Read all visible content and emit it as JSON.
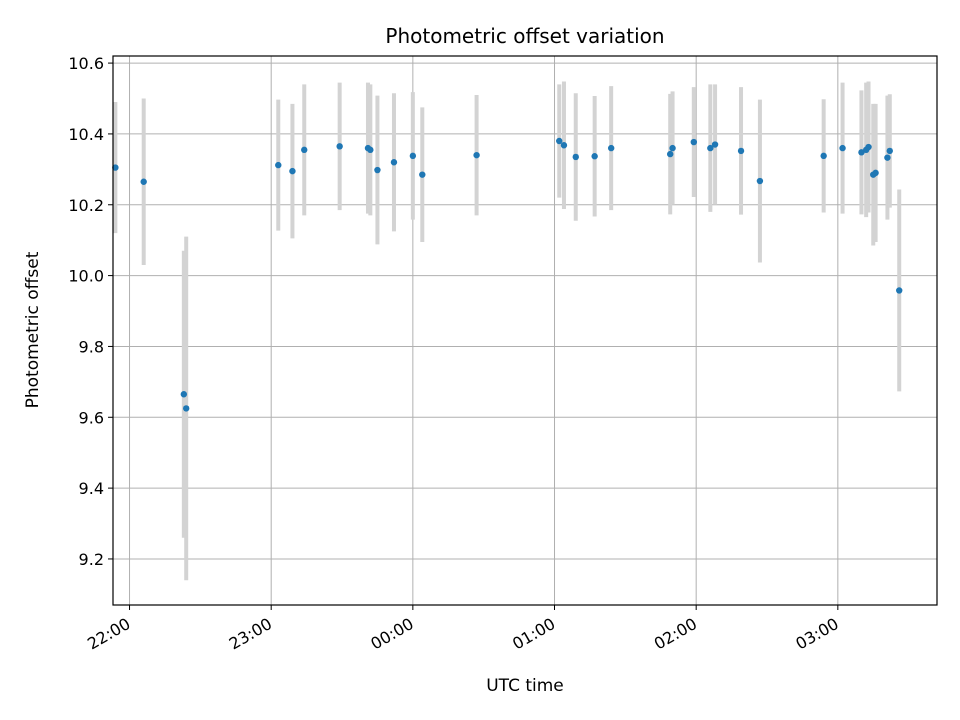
{
  "chart_data": {
    "type": "scatter",
    "title": "Photometric offset variation",
    "xlabel": "UTC time",
    "ylabel": "Photometric offset",
    "x_unit": "UTC time (hh:mm)",
    "xlim": [
      "21:53",
      "03:42"
    ],
    "ylim": [
      9.07,
      10.62
    ],
    "x_ticks": [
      "22:00",
      "23:00",
      "00:00",
      "01:00",
      "02:00",
      "03:00"
    ],
    "y_ticks": [
      9.2,
      9.4,
      9.6,
      9.8,
      10.0,
      10.2,
      10.4,
      10.6
    ],
    "grid": true,
    "colors": {
      "points": "#1f77b4",
      "errorbars": "#d3d3d3",
      "grid": "#b0b0b0"
    },
    "series": [
      {
        "points": [
          {
            "x": "21:54",
            "y": 10.305,
            "err": 0.185
          },
          {
            "x": "22:06",
            "y": 10.265,
            "err": 0.235
          },
          {
            "x": "22:23",
            "y": 9.665,
            "err": 0.405
          },
          {
            "x": "22:24",
            "y": 9.625,
            "err": 0.485
          },
          {
            "x": "23:03",
            "y": 10.312,
            "err": 0.185
          },
          {
            "x": "23:09",
            "y": 10.295,
            "err": 0.19
          },
          {
            "x": "23:14",
            "y": 10.355,
            "err": 0.185
          },
          {
            "x": "23:29",
            "y": 10.365,
            "err": 0.18
          },
          {
            "x": "23:41",
            "y": 10.36,
            "err": 0.185
          },
          {
            "x": "23:42",
            "y": 10.355,
            "err": 0.185
          },
          {
            "x": "23:45",
            "y": 10.298,
            "err": 0.21
          },
          {
            "x": "23:52",
            "y": 10.32,
            "err": 0.195
          },
          {
            "x": "00:00",
            "y": 10.338,
            "err": 0.18
          },
          {
            "x": "00:04",
            "y": 10.285,
            "err": 0.19
          },
          {
            "x": "00:27",
            "y": 10.34,
            "err": 0.17
          },
          {
            "x": "01:02",
            "y": 10.38,
            "err": 0.16
          },
          {
            "x": "01:04",
            "y": 10.368,
            "err": 0.18
          },
          {
            "x": "01:09",
            "y": 10.335,
            "err": 0.18
          },
          {
            "x": "01:17",
            "y": 10.337,
            "err": 0.17
          },
          {
            "x": "01:24",
            "y": 10.36,
            "err": 0.175
          },
          {
            "x": "01:49",
            "y": 10.343,
            "err": 0.17
          },
          {
            "x": "01:50",
            "y": 10.36,
            "err": 0.16
          },
          {
            "x": "01:59",
            "y": 10.377,
            "err": 0.155
          },
          {
            "x": "02:06",
            "y": 10.36,
            "err": 0.18
          },
          {
            "x": "02:08",
            "y": 10.37,
            "err": 0.17
          },
          {
            "x": "02:19",
            "y": 10.352,
            "err": 0.18
          },
          {
            "x": "02:27",
            "y": 10.267,
            "err": 0.23
          },
          {
            "x": "02:54",
            "y": 10.338,
            "err": 0.16
          },
          {
            "x": "03:02",
            "y": 10.36,
            "err": 0.185
          },
          {
            "x": "03:10",
            "y": 10.348,
            "err": 0.175
          },
          {
            "x": "03:12",
            "y": 10.355,
            "err": 0.19
          },
          {
            "x": "03:13",
            "y": 10.363,
            "err": 0.185
          },
          {
            "x": "03:15",
            "y": 10.285,
            "err": 0.2
          },
          {
            "x": "03:16",
            "y": 10.29,
            "err": 0.195
          },
          {
            "x": "03:21",
            "y": 10.333,
            "err": 0.175
          },
          {
            "x": "03:22",
            "y": 10.352,
            "err": 0.16
          },
          {
            "x": "03:26",
            "y": 9.958,
            "err": 0.285
          }
        ]
      }
    ]
  }
}
